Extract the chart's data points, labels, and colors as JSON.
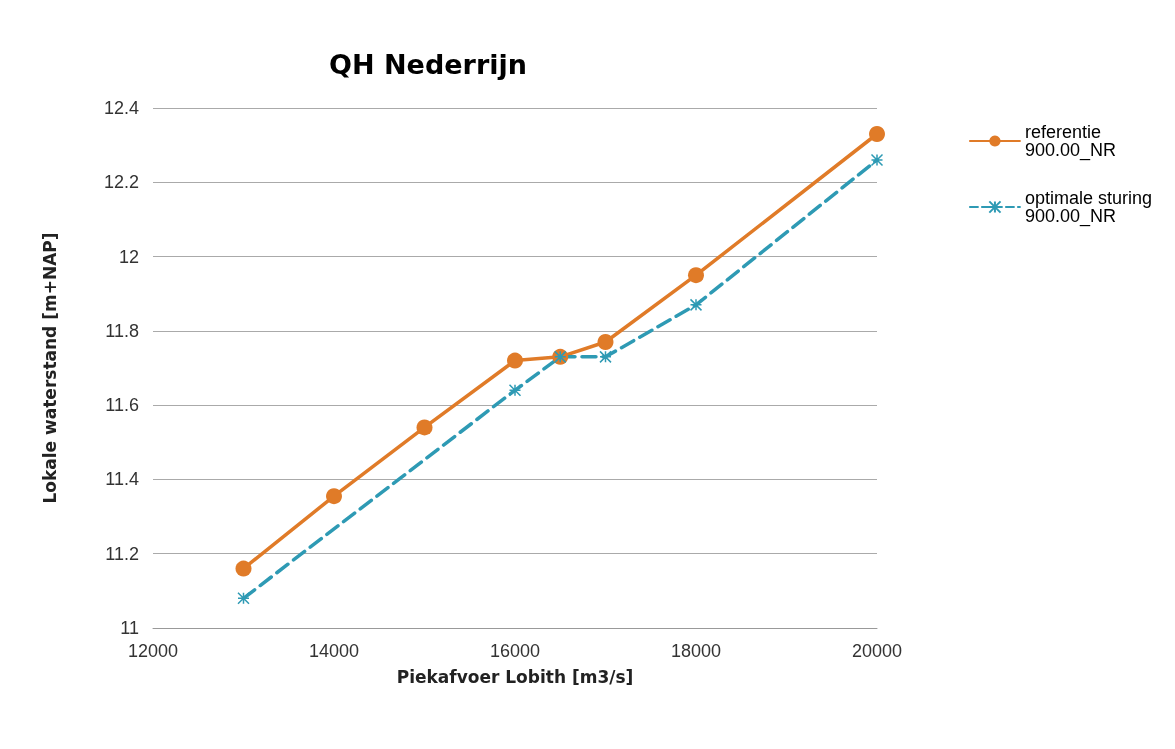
{
  "chart_data": {
    "type": "line",
    "title": "QH Nederrijn",
    "xlabel": "Piekafvoer Lobith [m3/s]",
    "ylabel": "Lokale waterstand [m+NAP]",
    "x": [
      13000,
      14000,
      15000,
      16000,
      16500,
      17000,
      18000,
      20000
    ],
    "series": [
      {
        "name": "referentie 900.00_NR",
        "color": "#e07b28",
        "values": [
          11.16,
          11.355,
          11.54,
          11.72,
          11.73,
          11.77,
          11.95,
          12.33
        ],
        "marker": "circle",
        "line_style": "solid"
      },
      {
        "name": "optimale sturing 900.00_NR",
        "color": "#2e9ab4",
        "x": [
          13000,
          16000,
          16500,
          17000,
          18000,
          20000
        ],
        "values": [
          11.08,
          11.64,
          11.73,
          11.73,
          11.87,
          12.26
        ],
        "marker": "cross",
        "line_style": "dashed"
      }
    ],
    "xlim": [
      12000,
      20000
    ],
    "xticks": [
      12000,
      14000,
      16000,
      18000,
      20000
    ],
    "ylim": [
      11,
      12.4
    ],
    "yticks": [
      11,
      11.2,
      11.4,
      11.6,
      11.8,
      12,
      12.2,
      12.4
    ],
    "grid": "y",
    "legend": "right"
  }
}
